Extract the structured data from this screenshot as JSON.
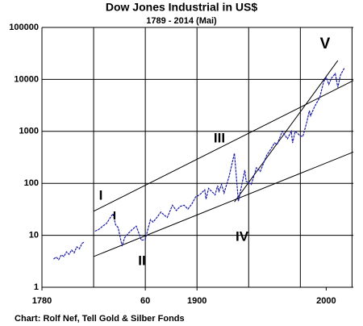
{
  "chart_data": {
    "type": "line",
    "title": "Dow Jones Industrial in US$",
    "subtitle": "1789 -  2014 (Mai)",
    "source": "Chart: Rolf Nef, Tell Gold & Silber Fonds",
    "log_y": true,
    "grid": true,
    "xlim": [
      1780,
      2021
    ],
    "xticks": [
      1780,
      {
        "value": 1860,
        "label": "60"
      },
      1900,
      2000
    ],
    "xgrid": [
      1780,
      1820,
      1860,
      1900,
      1940,
      1980,
      2020
    ],
    "ylim": [
      1,
      100000
    ],
    "yticks": [
      1,
      10,
      100,
      1000,
      10000,
      100000
    ],
    "series": [
      {
        "color": "#1c1ca8",
        "x": [
          1789,
          1791,
          1793,
          1795,
          1797,
          1799,
          1801,
          1803,
          1805,
          1807,
          1809,
          1811,
          1813,
          1816,
          1821,
          1824,
          1827,
          1830,
          1833,
          1835,
          1837,
          1839,
          1842,
          1844,
          1847,
          1850,
          1853,
          1855,
          1857,
          1860,
          1862,
          1864,
          1866,
          1869,
          1872,
          1875,
          1877,
          1881,
          1884,
          1887,
          1890,
          1893,
          1896,
          1899,
          1902,
          1906,
          1907,
          1909,
          1914,
          1916,
          1917,
          1919,
          1921,
          1925,
          1929,
          1932,
          1937,
          1938,
          1942,
          1946,
          1949,
          1954,
          1957,
          1960,
          1962,
          1966,
          1970,
          1973,
          1974,
          1976,
          1980,
          1982,
          1985,
          1987,
          1988,
          1991,
          1995,
          1998,
          2000,
          2002,
          2004,
          2007,
          2009,
          2011,
          2014
        ],
        "values": [
          3.5,
          3.8,
          3.4,
          4.2,
          3.9,
          4.8,
          4.3,
          5.2,
          4.6,
          6,
          5.5,
          7,
          7.5,
          null,
          12,
          13,
          15,
          17,
          22,
          26,
          16,
          14,
          6.2,
          9,
          11,
          13,
          15,
          11,
          8,
          8.3,
          13,
          20,
          18,
          22,
          28,
          24,
          22,
          38,
          30,
          36,
          38,
          32,
          40,
          55,
          60,
          75,
          50,
          80,
          60,
          90,
          70,
          95,
          65,
          140,
          380,
          45,
          180,
          110,
          95,
          200,
          170,
          350,
          450,
          600,
          560,
          1000,
          720,
          1000,
          600,
          1000,
          820,
          800,
          1500,
          2500,
          2000,
          3000,
          4500,
          9000,
          11000,
          8000,
          10500,
          13000,
          7000,
          12000,
          16500
        ]
      }
    ],
    "trend_lines": [
      {
        "x": [
          1820,
          2021
        ],
        "values": [
          29,
          9500
        ]
      },
      {
        "x": [
          1820,
          2021
        ],
        "values": [
          3.9,
          400
        ]
      },
      {
        "x": [
          1929,
          2009
        ],
        "values": [
          44,
          23000
        ]
      }
    ],
    "annotations": [
      "I",
      "I",
      "II",
      "III",
      "IV",
      "V"
    ]
  }
}
